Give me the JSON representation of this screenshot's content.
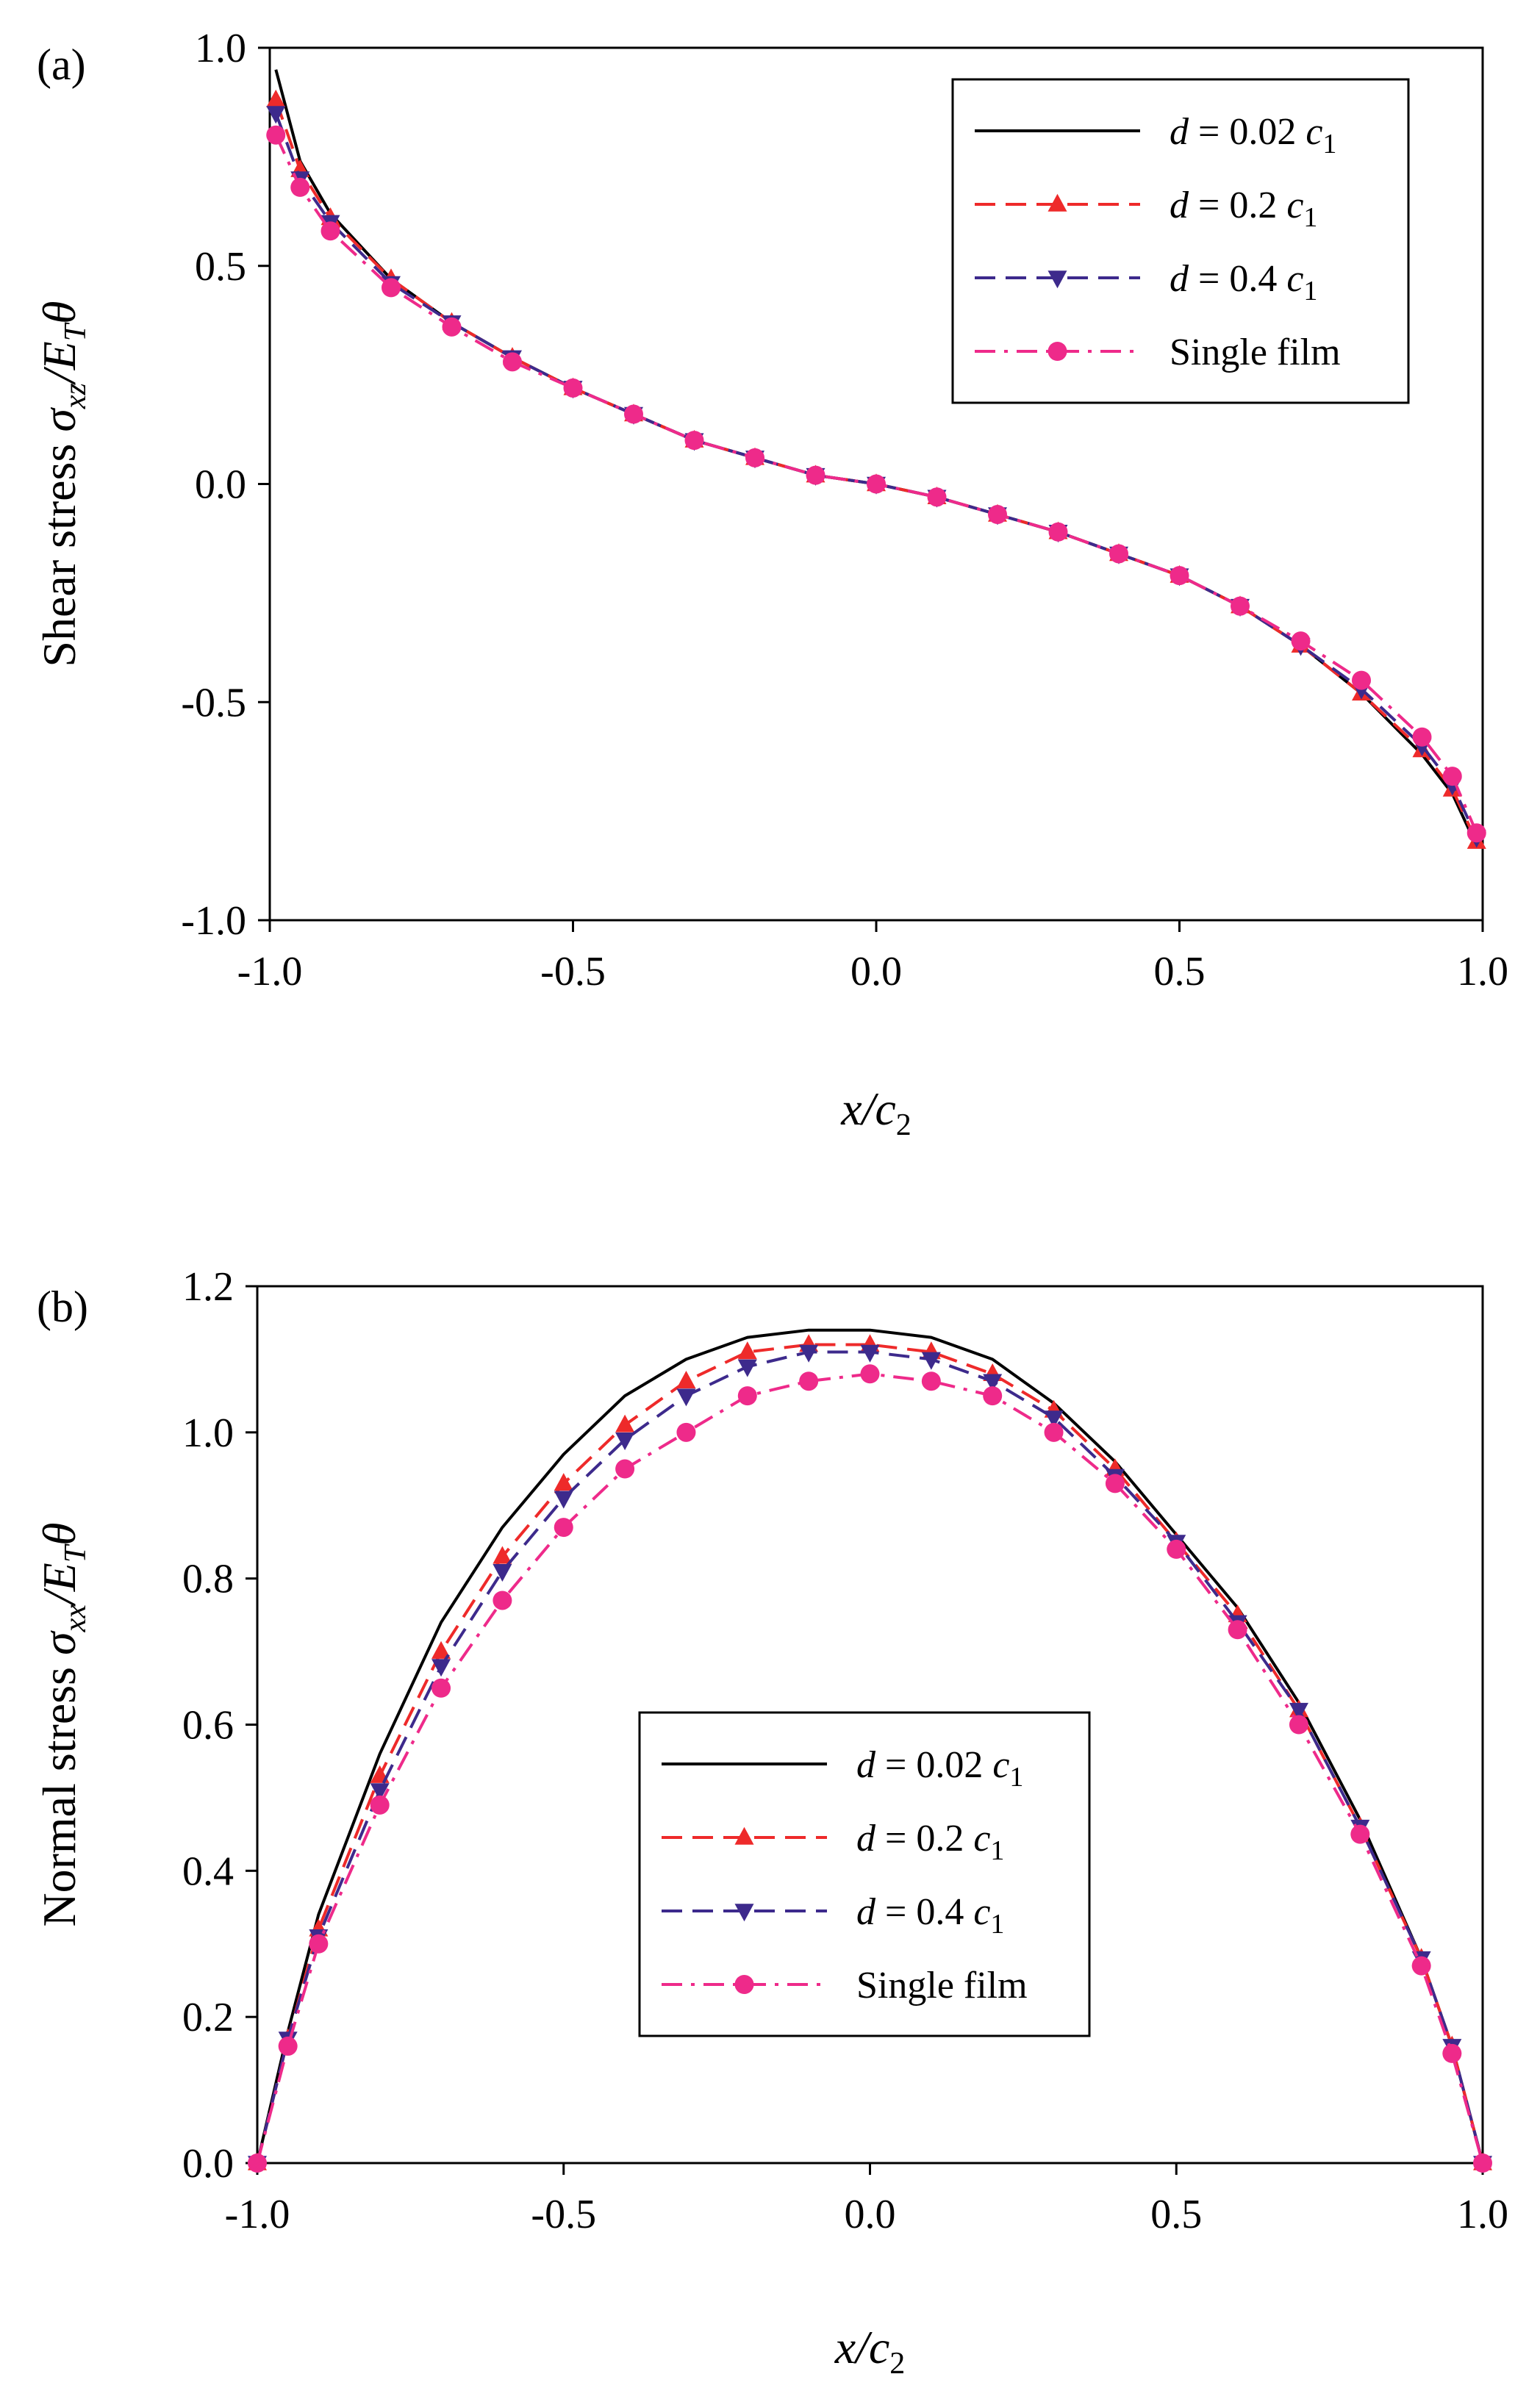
{
  "chart_data": [
    {
      "type": "line",
      "panel_label": "(a)",
      "ylabel": {
        "prefix": "Shear stress ",
        "symbol": "σ",
        "sub": "xz",
        "mid": "/E",
        "sub2": "T",
        "tail": "θ"
      },
      "xlabel": {
        "main": "x/c",
        "sub": "2"
      },
      "xlim": [
        -1.0,
        1.0
      ],
      "ylim": [
        -1.0,
        1.0
      ],
      "xticks": [
        -1.0,
        -0.5,
        0.0,
        0.5,
        1.0
      ],
      "xtick_labels": [
        "-1.0",
        "-0.5",
        "0.0",
        "0.5",
        "1.0"
      ],
      "yticks": [
        -1.0,
        -0.5,
        0.0,
        0.5,
        1.0
      ],
      "ytick_labels": [
        "-1.0",
        "-0.5",
        "0.0",
        "0.5",
        "1.0"
      ],
      "legend_position": "top-right",
      "series": [
        {
          "name": "d = 0.02 c1",
          "label_main": "d = 0.02 c",
          "label_sub": "1",
          "color": "#000000",
          "dash": "solid",
          "marker": "none",
          "x": [
            -0.99,
            -0.95,
            -0.9,
            -0.8,
            -0.7,
            -0.6,
            -0.5,
            -0.4,
            -0.3,
            -0.2,
            -0.1,
            0.0,
            0.1,
            0.2,
            0.3,
            0.4,
            0.5,
            0.6,
            0.7,
            0.8,
            0.9,
            0.95,
            0.99
          ],
          "y": [
            0.95,
            0.74,
            0.62,
            0.47,
            0.37,
            0.29,
            0.22,
            0.16,
            0.1,
            0.06,
            0.02,
            0.0,
            -0.03,
            -0.07,
            -0.11,
            -0.16,
            -0.21,
            -0.28,
            -0.37,
            -0.48,
            -0.62,
            -0.71,
            -0.83
          ]
        },
        {
          "name": "d = 0.2 c1",
          "label_main": "d = 0.2 c",
          "label_sub": "1",
          "color": "#ee2a2a",
          "dash": "long",
          "marker": "triangle-up",
          "x": [
            -0.99,
            -0.95,
            -0.9,
            -0.8,
            -0.7,
            -0.6,
            -0.5,
            -0.4,
            -0.3,
            -0.2,
            -0.1,
            0.0,
            0.1,
            0.2,
            0.3,
            0.4,
            0.5,
            0.6,
            0.7,
            0.8,
            0.9,
            0.95,
            0.99
          ],
          "y": [
            0.88,
            0.72,
            0.61,
            0.47,
            0.37,
            0.29,
            0.22,
            0.16,
            0.1,
            0.06,
            0.02,
            0.0,
            -0.03,
            -0.07,
            -0.11,
            -0.16,
            -0.21,
            -0.28,
            -0.37,
            -0.48,
            -0.61,
            -0.7,
            -0.82
          ]
        },
        {
          "name": "d = 0.4 c1",
          "label_main": "d = 0.4 c",
          "label_sub": "1",
          "color": "#3d2a8c",
          "dash": "long",
          "marker": "triangle-down",
          "x": [
            -0.99,
            -0.95,
            -0.9,
            -0.8,
            -0.7,
            -0.6,
            -0.5,
            -0.4,
            -0.3,
            -0.2,
            -0.1,
            0.0,
            0.1,
            0.2,
            0.3,
            0.4,
            0.5,
            0.6,
            0.7,
            0.8,
            0.9,
            0.95,
            0.99
          ],
          "y": [
            0.85,
            0.7,
            0.6,
            0.46,
            0.37,
            0.29,
            0.22,
            0.16,
            0.1,
            0.06,
            0.02,
            0.0,
            -0.03,
            -0.07,
            -0.11,
            -0.16,
            -0.21,
            -0.28,
            -0.37,
            -0.47,
            -0.6,
            -0.69,
            -0.81
          ]
        },
        {
          "name": "Single film",
          "label_main": "Single film",
          "label_sub": "",
          "color": "#ee2a8a",
          "dash": "dashdot",
          "marker": "circle",
          "x": [
            -0.99,
            -0.95,
            -0.9,
            -0.8,
            -0.7,
            -0.6,
            -0.5,
            -0.4,
            -0.3,
            -0.2,
            -0.1,
            0.0,
            0.1,
            0.2,
            0.3,
            0.4,
            0.5,
            0.6,
            0.7,
            0.8,
            0.9,
            0.95,
            0.99
          ],
          "y": [
            0.8,
            0.68,
            0.58,
            0.45,
            0.36,
            0.28,
            0.22,
            0.16,
            0.1,
            0.06,
            0.02,
            0.0,
            -0.03,
            -0.07,
            -0.11,
            -0.16,
            -0.21,
            -0.28,
            -0.36,
            -0.45,
            -0.58,
            -0.67,
            -0.8
          ]
        }
      ]
    },
    {
      "type": "line",
      "panel_label": "(b)",
      "ylabel": {
        "prefix": "Normal stress ",
        "symbol": "σ",
        "sub": "xx",
        "mid": "/E",
        "sub2": "T",
        "tail": "θ"
      },
      "xlabel": {
        "main": "x/c",
        "sub": "2"
      },
      "xlim": [
        -1.0,
        1.0
      ],
      "ylim": [
        0.0,
        1.2
      ],
      "xticks": [
        -1.0,
        -0.5,
        0.0,
        0.5,
        1.0
      ],
      "xtick_labels": [
        "-1.0",
        "-0.5",
        "0.0",
        "0.5",
        "1.0"
      ],
      "yticks": [
        0.0,
        0.2,
        0.4,
        0.6,
        0.8,
        1.0,
        1.2
      ],
      "ytick_labels": [
        "0.0",
        "0.2",
        "0.4",
        "0.6",
        "0.8",
        "1.0",
        "1.2"
      ],
      "legend_position": "center",
      "series": [
        {
          "name": "d = 0.02 c1",
          "label_main": "d = 0.02 c",
          "label_sub": "1",
          "color": "#000000",
          "dash": "solid",
          "marker": "none",
          "x": [
            -1.0,
            -0.95,
            -0.9,
            -0.8,
            -0.7,
            -0.6,
            -0.5,
            -0.4,
            -0.3,
            -0.2,
            -0.1,
            0.0,
            0.1,
            0.2,
            0.3,
            0.4,
            0.5,
            0.6,
            0.7,
            0.8,
            0.9,
            0.95,
            1.0
          ],
          "y": [
            0.0,
            0.18,
            0.34,
            0.56,
            0.74,
            0.87,
            0.97,
            1.05,
            1.1,
            1.13,
            1.14,
            1.14,
            1.13,
            1.1,
            1.04,
            0.96,
            0.86,
            0.76,
            0.63,
            0.47,
            0.28,
            0.16,
            0.0
          ]
        },
        {
          "name": "d = 0.2 c1",
          "label_main": "d = 0.2 c",
          "label_sub": "1",
          "color": "#ee2a2a",
          "dash": "long",
          "marker": "triangle-up",
          "x": [
            -1.0,
            -0.95,
            -0.9,
            -0.8,
            -0.7,
            -0.6,
            -0.5,
            -0.4,
            -0.3,
            -0.2,
            -0.1,
            0.0,
            0.1,
            0.2,
            0.3,
            0.4,
            0.5,
            0.6,
            0.7,
            0.8,
            0.9,
            0.95,
            1.0
          ],
          "y": [
            0.0,
            0.17,
            0.32,
            0.53,
            0.7,
            0.83,
            0.93,
            1.01,
            1.07,
            1.11,
            1.12,
            1.12,
            1.11,
            1.08,
            1.03,
            0.95,
            0.85,
            0.75,
            0.62,
            0.46,
            0.28,
            0.16,
            0.0
          ]
        },
        {
          "name": "d = 0.4 c1",
          "label_main": "d = 0.4 c",
          "label_sub": "1",
          "color": "#3d2a8c",
          "dash": "long",
          "marker": "triangle-down",
          "x": [
            -1.0,
            -0.95,
            -0.9,
            -0.8,
            -0.7,
            -0.6,
            -0.5,
            -0.4,
            -0.3,
            -0.2,
            -0.1,
            0.0,
            0.1,
            0.2,
            0.3,
            0.4,
            0.5,
            0.6,
            0.7,
            0.8,
            0.9,
            0.95,
            1.0
          ],
          "y": [
            0.0,
            0.17,
            0.31,
            0.51,
            0.68,
            0.81,
            0.91,
            0.99,
            1.05,
            1.09,
            1.11,
            1.11,
            1.1,
            1.07,
            1.02,
            0.94,
            0.85,
            0.74,
            0.62,
            0.46,
            0.28,
            0.16,
            0.0
          ]
        },
        {
          "name": "Single film",
          "label_main": "Single film",
          "label_sub": "",
          "color": "#ee2a8a",
          "dash": "dashdot",
          "marker": "circle",
          "x": [
            -1.0,
            -0.95,
            -0.9,
            -0.8,
            -0.7,
            -0.6,
            -0.5,
            -0.4,
            -0.3,
            -0.2,
            -0.1,
            0.0,
            0.1,
            0.2,
            0.3,
            0.4,
            0.5,
            0.6,
            0.7,
            0.8,
            0.9,
            0.95,
            1.0
          ],
          "y": [
            0.0,
            0.16,
            0.3,
            0.49,
            0.65,
            0.77,
            0.87,
            0.95,
            1.0,
            1.05,
            1.07,
            1.08,
            1.07,
            1.05,
            1.0,
            0.93,
            0.84,
            0.73,
            0.6,
            0.45,
            0.27,
            0.15,
            0.0
          ]
        }
      ]
    }
  ]
}
